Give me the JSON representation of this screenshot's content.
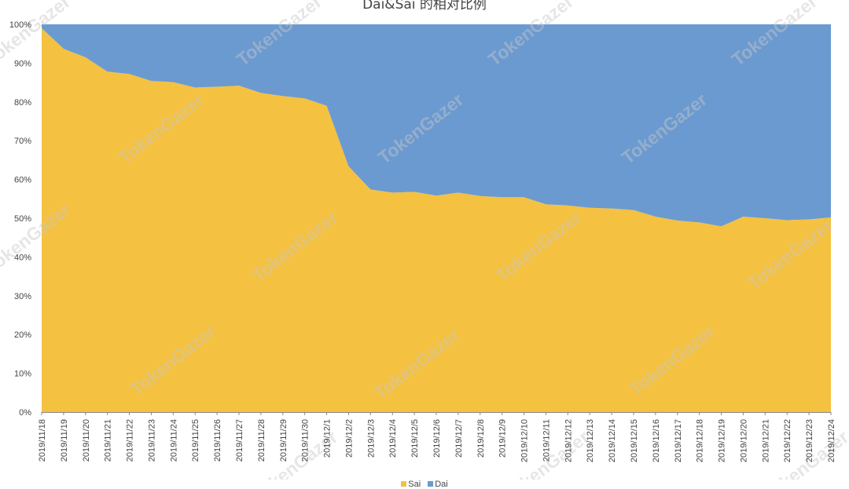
{
  "chart_data": {
    "type": "area",
    "stacked": "percent",
    "title": "Dai&Sai 的相对比例",
    "watermark": "TokenGazer",
    "ylim": [
      0,
      100
    ],
    "y_ticks": [
      "0%",
      "10%",
      "20%",
      "30%",
      "40%",
      "50%",
      "60%",
      "70%",
      "80%",
      "90%",
      "100%"
    ],
    "x": [
      "2019/11/18",
      "2019/11/19",
      "2019/11/20",
      "2019/11/21",
      "2019/11/22",
      "2019/11/23",
      "2019/11/24",
      "2019/11/25",
      "2019/11/26",
      "2019/11/27",
      "2019/11/28",
      "2019/11/29",
      "2019/11/30",
      "2019/12/1",
      "2019/12/2",
      "2019/12/3",
      "2019/12/4",
      "2019/12/5",
      "2019/12/6",
      "2019/12/7",
      "2019/12/8",
      "2019/12/9",
      "2019/12/10",
      "2019/12/11",
      "2019/12/12",
      "2019/12/13",
      "2019/12/14",
      "2019/12/15",
      "2019/12/16",
      "2019/12/17",
      "2019/12/18",
      "2019/12/19",
      "2019/12/20",
      "2019/12/21",
      "2019/12/22",
      "2019/12/23",
      "2019/12/24"
    ],
    "series": [
      {
        "name": "Sai",
        "color": "#f4c141",
        "values": [
          99,
          93.7,
          91.5,
          87.8,
          87.2,
          85.4,
          85.1,
          83.7,
          83.9,
          84.2,
          82.3,
          81.5,
          80.9,
          79,
          63.4,
          57.4,
          56.6,
          56.8,
          55.8,
          56.6,
          55.7,
          55.4,
          55.4,
          53.6,
          53.3,
          52.7,
          52.5,
          52.1,
          50.4,
          49.4,
          48.9,
          47.9,
          50.4,
          50,
          49.5,
          49.7,
          50.2
        ]
      },
      {
        "name": "Dai",
        "color": "#6b9ad0",
        "values": [
          1,
          6.3,
          8.5,
          12.2,
          12.8,
          14.6,
          14.9,
          16.3,
          16.1,
          15.8,
          17.7,
          18.5,
          19.1,
          21,
          36.6,
          42.6,
          43.4,
          43.2,
          44.2,
          43.4,
          44.3,
          44.6,
          44.6,
          46.4,
          46.7,
          47.3,
          47.5,
          47.9,
          49.6,
          50.6,
          51.1,
          52.1,
          49.6,
          50,
          50.5,
          50.3,
          49.8
        ]
      }
    ],
    "legend_position": "bottom"
  }
}
